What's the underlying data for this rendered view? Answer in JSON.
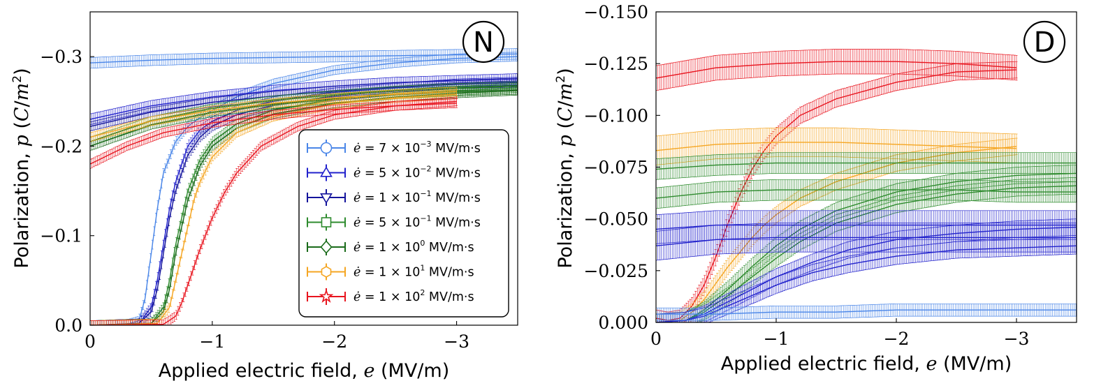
{
  "chart_data": [
    {
      "type": "line",
      "panel_label": "N",
      "xlabel": "Applied electric field, e (MV/m)",
      "ylabel": "Polarization, p (C/m²)",
      "xlim": [
        0,
        -3.5
      ],
      "ylim": [
        0,
        -0.35
      ],
      "x_reversed": true,
      "y_reversed": true,
      "x_ticks": [
        0,
        -1,
        -2,
        -3
      ],
      "x_tick_labels": [
        "0",
        "−1",
        "−2",
        "−3"
      ],
      "y_ticks": [
        0,
        -0.1,
        -0.2,
        -0.3
      ],
      "y_tick_labels": [
        "0.0",
        "−0.1",
        "−0.2",
        "−0.3"
      ],
      "legend": {
        "placement": "lower-right",
        "entries": [
          {
            "rate": "7 × 10^-3",
            "label": "ė = 7 × 10⁻³ MV/m·s",
            "color": "#4a86e8",
            "marker": "circle"
          },
          {
            "rate": "5 × 10^-2",
            "label": "ė = 5 × 10⁻² MV/m·s",
            "color": "#2222cc",
            "marker": "triangle-up"
          },
          {
            "rate": "1 × 10^-1",
            "label": "ė = 1 × 10⁻¹ MV/m·s",
            "color": "#14149c",
            "marker": "triangle-down"
          },
          {
            "rate": "5 × 10^-1",
            "label": "ė = 5 × 10⁻¹ MV/m·s",
            "color": "#2e8b2e",
            "marker": "square"
          },
          {
            "rate": "1 × 10^0",
            "label": "ė = 1 × 10⁰ MV/m·s",
            "color": "#1a6b1a",
            "marker": "diamond"
          },
          {
            "rate": "1 × 10^1",
            "label": "ė = 1 × 10¹ MV/m·s",
            "color": "#f5a623",
            "marker": "hexagon"
          },
          {
            "rate": "1 × 10^2",
            "label": "ė = 1 × 10² MV/m·s",
            "color": "#e8141e",
            "marker": "star"
          }
        ]
      },
      "series": [
        {
          "color": "#4a86e8",
          "kind": "plateau",
          "x": [
            0,
            -0.5,
            -1,
            -1.5,
            -2,
            -2.5,
            -3,
            -3.5
          ],
          "y": [
            -0.293,
            -0.296,
            -0.298,
            -0.299,
            -0.3,
            -0.301,
            -0.302,
            -0.303
          ],
          "err": 0.006
        },
        {
          "color": "#4a86e8",
          "kind": "rise",
          "x": [
            0,
            -0.3,
            -0.4,
            -0.45,
            -0.5,
            -0.55,
            -0.6,
            -0.7,
            -0.8,
            -0.9,
            -1.0,
            -1.2,
            -1.5,
            -2,
            -2.5,
            -3,
            -3.5
          ],
          "y": [
            0,
            -0.001,
            -0.005,
            -0.03,
            -0.08,
            -0.13,
            -0.17,
            -0.205,
            -0.222,
            -0.232,
            -0.24,
            -0.255,
            -0.27,
            -0.285,
            -0.293,
            -0.298,
            -0.3
          ],
          "err": 0.005
        },
        {
          "color": "#2222cc",
          "kind": "plateau",
          "x": [
            0,
            -0.5,
            -1,
            -1.5,
            -2,
            -2.5,
            -3,
            -3.5
          ],
          "y": [
            -0.23,
            -0.245,
            -0.255,
            -0.262,
            -0.267,
            -0.271,
            -0.273,
            -0.275
          ],
          "err": 0.006
        },
        {
          "color": "#2222cc",
          "kind": "rise",
          "x": [
            0,
            -0.4,
            -0.5,
            -0.55,
            -0.6,
            -0.65,
            -0.7,
            -0.8,
            -0.9,
            -1.0,
            -1.2,
            -1.5,
            -2,
            -2.5,
            -3,
            -3.5
          ],
          "y": [
            0,
            -0.002,
            -0.02,
            -0.05,
            -0.09,
            -0.13,
            -0.16,
            -0.2,
            -0.218,
            -0.228,
            -0.24,
            -0.25,
            -0.26,
            -0.265,
            -0.27,
            -0.272
          ],
          "err": 0.005
        },
        {
          "color": "#14149c",
          "kind": "plateau",
          "x": [
            0,
            -0.5,
            -1,
            -1.5,
            -2,
            -2.5,
            -3,
            -3.5
          ],
          "y": [
            -0.222,
            -0.238,
            -0.249,
            -0.256,
            -0.262,
            -0.266,
            -0.269,
            -0.271
          ],
          "err": 0.005
        },
        {
          "color": "#14149c",
          "kind": "rise",
          "x": [
            0,
            -0.4,
            -0.5,
            -0.55,
            -0.6,
            -0.65,
            -0.7,
            -0.8,
            -0.9,
            -1.0,
            -1.2,
            -1.5,
            -2,
            -2.5,
            -3,
            -3.5
          ],
          "y": [
            0,
            -0.002,
            -0.015,
            -0.04,
            -0.08,
            -0.12,
            -0.15,
            -0.19,
            -0.21,
            -0.222,
            -0.235,
            -0.246,
            -0.256,
            -0.262,
            -0.266,
            -0.268
          ],
          "err": 0.005
        },
        {
          "color": "#2e8b2e",
          "kind": "plateau",
          "x": [
            0,
            -0.5,
            -1,
            -1.5,
            -2,
            -2.5,
            -3,
            -3.5
          ],
          "y": [
            -0.205,
            -0.228,
            -0.242,
            -0.251,
            -0.257,
            -0.262,
            -0.265,
            -0.267
          ],
          "err": 0.005
        },
        {
          "color": "#2e8b2e",
          "kind": "rise",
          "x": [
            0,
            -0.5,
            -0.6,
            -0.65,
            -0.7,
            -0.75,
            -0.8,
            -0.9,
            -1.0,
            -1.2,
            -1.5,
            -2,
            -2.5,
            -3,
            -3.5
          ],
          "y": [
            0,
            -0.002,
            -0.02,
            -0.05,
            -0.09,
            -0.12,
            -0.15,
            -0.185,
            -0.205,
            -0.225,
            -0.24,
            -0.252,
            -0.258,
            -0.262,
            -0.265
          ],
          "err": 0.005
        },
        {
          "color": "#1a6b1a",
          "kind": "plateau",
          "x": [
            0,
            -0.5,
            -1,
            -1.5,
            -2,
            -2.5,
            -3,
            -3.5
          ],
          "y": [
            -0.2,
            -0.224,
            -0.238,
            -0.247,
            -0.253,
            -0.258,
            -0.261,
            -0.263
          ],
          "err": 0.005
        },
        {
          "color": "#1a6b1a",
          "kind": "rise",
          "x": [
            0,
            -0.5,
            -0.6,
            -0.65,
            -0.7,
            -0.75,
            -0.8,
            -0.9,
            -1.0,
            -1.2,
            -1.5,
            -2,
            -2.5,
            -3,
            -3.5
          ],
          "y": [
            0,
            -0.002,
            -0.015,
            -0.04,
            -0.08,
            -0.11,
            -0.14,
            -0.178,
            -0.2,
            -0.22,
            -0.236,
            -0.248,
            -0.255,
            -0.259,
            -0.262
          ],
          "err": 0.005
        },
        {
          "color": "#f5a623",
          "kind": "plateau",
          "x": [
            0,
            -0.5,
            -1,
            -1.5,
            -2,
            -2.5,
            -3
          ],
          "y": [
            -0.21,
            -0.228,
            -0.24,
            -0.248,
            -0.254,
            -0.258,
            -0.261
          ],
          "err": 0.005
        },
        {
          "color": "#f5a623",
          "kind": "rise",
          "x": [
            0,
            -0.55,
            -0.65,
            -0.7,
            -0.75,
            -0.8,
            -0.85,
            -0.9,
            -1.0,
            -1.2,
            -1.5,
            -2,
            -2.5,
            -3
          ],
          "y": [
            0,
            -0.002,
            -0.02,
            -0.05,
            -0.08,
            -0.11,
            -0.14,
            -0.16,
            -0.188,
            -0.215,
            -0.233,
            -0.247,
            -0.254,
            -0.258
          ],
          "err": 0.005
        },
        {
          "color": "#e8141e",
          "kind": "plateau",
          "x": [
            0,
            -0.3,
            -0.6,
            -1,
            -1.5,
            -2,
            -2.5,
            -3
          ],
          "y": [
            -0.18,
            -0.2,
            -0.215,
            -0.226,
            -0.235,
            -0.241,
            -0.245,
            -0.248
          ],
          "err": 0.005
        },
        {
          "color": "#e8141e",
          "kind": "rise",
          "x": [
            0,
            -0.6,
            -0.7,
            -0.75,
            -0.8,
            -0.9,
            -1.0,
            -1.1,
            -1.2,
            -1.4,
            -1.7,
            -2,
            -2.5,
            -3
          ],
          "y": [
            0,
            -0.001,
            -0.01,
            -0.025,
            -0.045,
            -0.085,
            -0.12,
            -0.148,
            -0.17,
            -0.2,
            -0.222,
            -0.235,
            -0.245,
            -0.25
          ],
          "err": 0.005
        }
      ]
    },
    {
      "type": "line",
      "panel_label": "D",
      "xlabel": "Applied electric field, e (MV/m)",
      "ylabel": "Polarization, p (C/m²)",
      "xlim": [
        0,
        -3.5
      ],
      "ylim": [
        0,
        -0.15
      ],
      "x_reversed": true,
      "y_reversed": true,
      "x_ticks": [
        0,
        -1,
        -2,
        -3
      ],
      "x_tick_labels": [
        "0",
        "−1",
        "−2",
        "−3"
      ],
      "y_ticks": [
        0,
        -0.025,
        -0.05,
        -0.075,
        -0.1,
        -0.125,
        -0.15
      ],
      "y_tick_labels": [
        "0.000",
        "−0.025",
        "−0.050",
        "−0.075",
        "−0.100",
        "−0.125",
        "−0.150"
      ],
      "series": [
        {
          "color": "#e8141e",
          "kind": "plateau",
          "x": [
            0,
            -0.5,
            -1,
            -1.5,
            -2,
            -2.5,
            -3
          ],
          "y": [
            -0.118,
            -0.123,
            -0.125,
            -0.126,
            -0.126,
            -0.125,
            -0.123
          ],
          "err": 0.006
        },
        {
          "color": "#e8141e",
          "kind": "rise",
          "x": [
            0,
            -0.1,
            -0.2,
            -0.3,
            -0.4,
            -0.5,
            -0.6,
            -0.7,
            -0.8,
            -0.9,
            -1.0,
            -1.2,
            -1.5,
            -2,
            -2.5,
            -3
          ],
          "y": [
            -0.002,
            -0.001,
            -0.002,
            -0.008,
            -0.018,
            -0.032,
            -0.048,
            -0.062,
            -0.074,
            -0.083,
            -0.09,
            -0.1,
            -0.108,
            -0.116,
            -0.121,
            -0.122
          ],
          "err": 0.004
        },
        {
          "color": "#f5a623",
          "kind": "plateau",
          "x": [
            0,
            -0.5,
            -1,
            -1.5,
            -2,
            -2.5,
            -3
          ],
          "y": [
            -0.083,
            -0.086,
            -0.087,
            -0.087,
            -0.086,
            -0.085,
            -0.084
          ],
          "err": 0.007
        },
        {
          "color": "#f5a623",
          "kind": "rise",
          "x": [
            0,
            -0.2,
            -0.3,
            -0.4,
            -0.5,
            -0.6,
            -0.7,
            -0.8,
            -0.9,
            -1.0,
            -1.2,
            -1.5,
            -2,
            -2.5,
            -3
          ],
          "y": [
            0,
            -0.001,
            -0.005,
            -0.011,
            -0.019,
            -0.027,
            -0.034,
            -0.041,
            -0.047,
            -0.052,
            -0.06,
            -0.068,
            -0.077,
            -0.082,
            -0.085
          ],
          "err": 0.004
        },
        {
          "color": "#2e8b2e",
          "kind": "plateau",
          "x": [
            0,
            -0.5,
            -1,
            -1.5,
            -2,
            -2.5,
            -3,
            -3.5
          ],
          "y": [
            -0.074,
            -0.076,
            -0.077,
            -0.077,
            -0.077,
            -0.077,
            -0.077,
            -0.077
          ],
          "err": 0.005
        },
        {
          "color": "#2e8b2e",
          "kind": "plateau",
          "x": [
            0,
            -0.5,
            -1,
            -1.5,
            -2,
            -2.5,
            -3,
            -3.5
          ],
          "y": [
            -0.06,
            -0.063,
            -0.064,
            -0.064,
            -0.064,
            -0.064,
            -0.063,
            -0.063
          ],
          "err": 0.005
        },
        {
          "color": "#2e8b2e",
          "kind": "rise",
          "x": [
            0,
            -0.25,
            -0.4,
            -0.6,
            -0.8,
            -1.0,
            -1.2,
            -1.5,
            -2,
            -2.5,
            -3,
            -3.5
          ],
          "y": [
            0,
            -0.001,
            -0.006,
            -0.016,
            -0.027,
            -0.037,
            -0.045,
            -0.054,
            -0.063,
            -0.068,
            -0.071,
            -0.072
          ],
          "err": 0.004
        },
        {
          "color": "#2e8b2e",
          "kind": "rise",
          "x": [
            0,
            -0.25,
            -0.4,
            -0.6,
            -0.8,
            -1.0,
            -1.2,
            -1.5,
            -2,
            -2.5,
            -3,
            -3.5
          ],
          "y": [
            0,
            -0.001,
            -0.005,
            -0.013,
            -0.022,
            -0.031,
            -0.039,
            -0.048,
            -0.057,
            -0.062,
            -0.065,
            -0.066
          ],
          "err": 0.004
        },
        {
          "color": "#2222cc",
          "kind": "plateau",
          "x": [
            0,
            -0.5,
            -1,
            -1.5,
            -2,
            -2.5,
            -3,
            -3.5
          ],
          "y": [
            -0.045,
            -0.047,
            -0.047,
            -0.047,
            -0.047,
            -0.047,
            -0.047,
            -0.047
          ],
          "err": 0.007
        },
        {
          "color": "#2222cc",
          "kind": "plateau",
          "x": [
            0,
            -0.5,
            -1,
            -1.5,
            -2,
            -2.5,
            -3,
            -3.5
          ],
          "y": [
            -0.037,
            -0.04,
            -0.041,
            -0.041,
            -0.041,
            -0.041,
            -0.041,
            -0.041
          ],
          "err": 0.007
        },
        {
          "color": "#2222cc",
          "kind": "rise",
          "x": [
            0,
            -0.25,
            -0.4,
            -0.6,
            -0.8,
            -1.0,
            -1.3,
            -1.6,
            -2,
            -2.5,
            -3,
            -3.5
          ],
          "y": [
            0,
            -0.001,
            -0.004,
            -0.01,
            -0.016,
            -0.022,
            -0.029,
            -0.035,
            -0.04,
            -0.043,
            -0.045,
            -0.046
          ],
          "err": 0.004
        },
        {
          "color": "#2222cc",
          "kind": "rise",
          "x": [
            0,
            -0.25,
            -0.4,
            -0.6,
            -0.8,
            -1.0,
            -1.3,
            -1.6,
            -2,
            -2.5,
            -3,
            -3.5
          ],
          "y": [
            0,
            -0.001,
            -0.003,
            -0.008,
            -0.013,
            -0.018,
            -0.024,
            -0.028,
            -0.032,
            -0.035,
            -0.036,
            -0.037
          ],
          "err": 0.004
        },
        {
          "color": "#4a86e8",
          "kind": "plateau",
          "x": [
            0,
            -0.5,
            -1,
            -1.5,
            -2,
            -2.5,
            -3,
            -3.5
          ],
          "y": [
            -0.004,
            -0.004,
            -0.005,
            -0.005,
            -0.006,
            -0.006,
            -0.006,
            -0.006
          ],
          "err": 0.003
        }
      ]
    }
  ]
}
